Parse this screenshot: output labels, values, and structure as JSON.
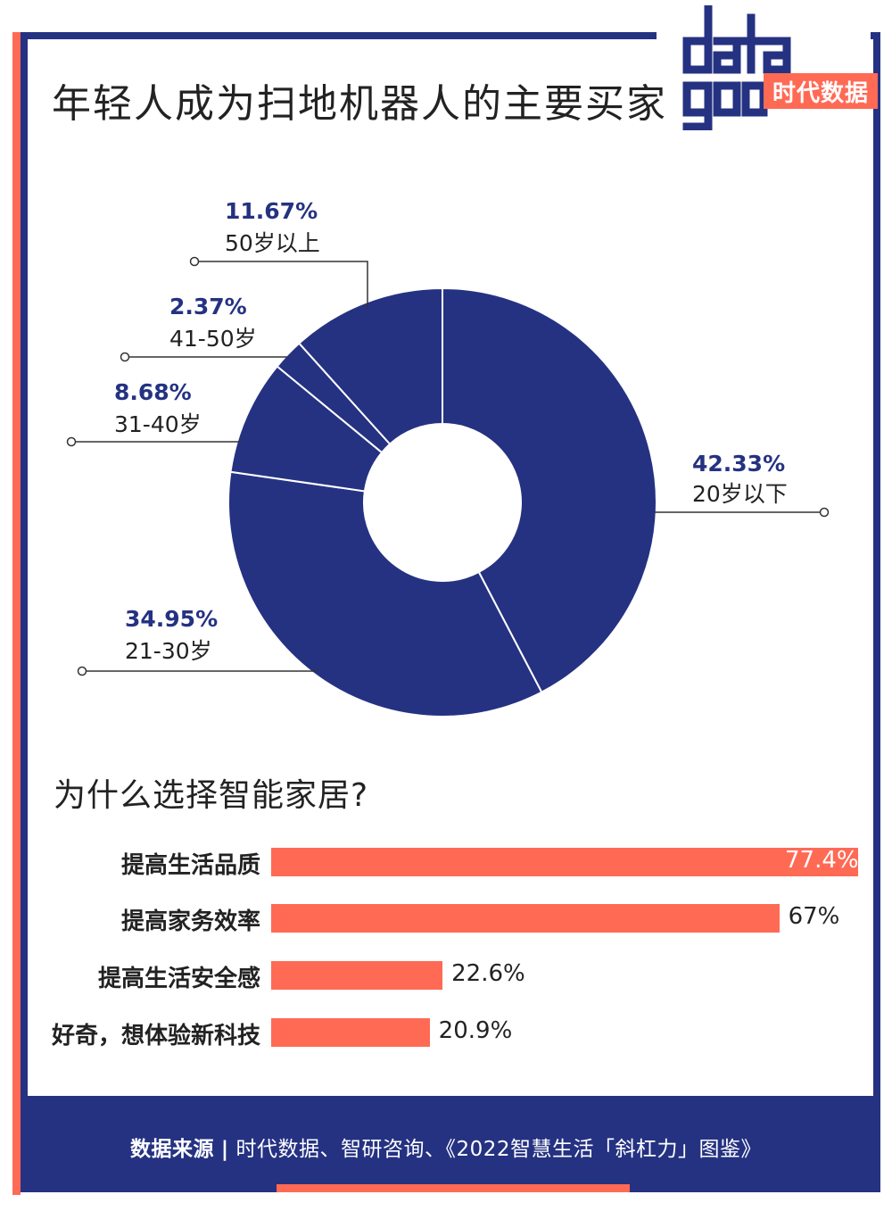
{
  "title": "年轻人成为扫地机器人的主要买家",
  "logo": {
    "text": "data",
    "brand": "时代数据"
  },
  "chart_data": [
    {
      "type": "pie",
      "variant": "donut",
      "title": "年轻人成为扫地机器人的主要买家",
      "slices": [
        {
          "label": "20岁以下",
          "value": 42.33,
          "value_label": "42.33%"
        },
        {
          "label": "21-30岁",
          "value": 34.95,
          "value_label": "34.95%"
        },
        {
          "label": "31-40岁",
          "value": 8.68,
          "value_label": "8.68%"
        },
        {
          "label": "41-50岁",
          "value": 2.37,
          "value_label": "2.37%"
        },
        {
          "label": "50岁以上",
          "value": 11.67,
          "value_label": "11.67%"
        }
      ],
      "color": "#253282",
      "value_color": "#253282"
    },
    {
      "type": "bar",
      "orientation": "horizontal",
      "title": "为什么选择智能家居?",
      "categories": [
        "提高生活品质",
        "提高家务效率",
        "提高生活安全感",
        "好奇，想体验新科技"
      ],
      "values": [
        77.4,
        67,
        22.6,
        20.9
      ],
      "value_labels": [
        "77.4%",
        "67%",
        "22.6%",
        "20.9%"
      ],
      "xlim": [
        0,
        77.4
      ],
      "color": "#ff6a55"
    }
  ],
  "footer": {
    "source_label": "数据来源",
    "separator": "|",
    "source_text": "时代数据、智研咨询、《2022智慧生活「斜杠力」图鉴》"
  },
  "colors": {
    "navy": "#253282",
    "coral": "#ff6a55"
  }
}
